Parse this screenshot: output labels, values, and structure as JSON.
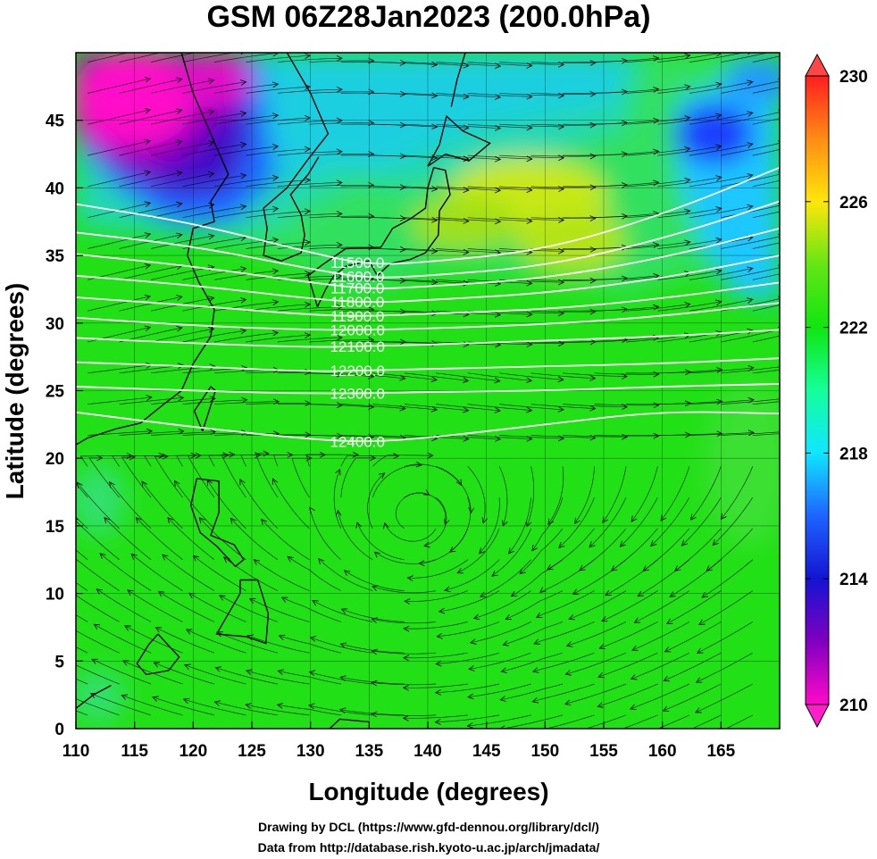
{
  "title": "GSM 06Z28Jan2023 (200.0hPa)",
  "chart_data": {
    "type": "heatmap",
    "xlabel": "Longitude (degrees)",
    "ylabel": "Latitude  (degrees)",
    "xlim": [
      110,
      170
    ],
    "ylim": [
      0,
      50
    ],
    "xticks": [
      110,
      115,
      120,
      125,
      130,
      135,
      140,
      145,
      150,
      155,
      160,
      165
    ],
    "yticks": [
      0,
      5,
      10,
      15,
      20,
      25,
      30,
      35,
      40,
      45
    ],
    "colorbar": {
      "min": 210,
      "max": 230,
      "ticks": [
        210,
        214,
        218,
        222,
        226,
        230
      ],
      "stops": [
        {
          "v": 210,
          "color": "#ff0ac8"
        },
        {
          "v": 212,
          "color": "#8000c0"
        },
        {
          "v": 214,
          "color": "#1414d2"
        },
        {
          "v": 216,
          "color": "#1e64ff"
        },
        {
          "v": 218,
          "color": "#10e6ff"
        },
        {
          "v": 220,
          "color": "#14ff9a"
        },
        {
          "v": 222,
          "color": "#10e610"
        },
        {
          "v": 224,
          "color": "#64e614"
        },
        {
          "v": 226,
          "color": "#ffe60a"
        },
        {
          "v": 228,
          "color": "#ff8c14"
        },
        {
          "v": 230,
          "color": "#ff1e1e"
        }
      ]
    },
    "contours": [
      {
        "label": "11500.0",
        "points": [
          [
            110,
            38.8
          ],
          [
            120,
            37.4
          ],
          [
            130,
            35.2
          ],
          [
            135,
            34.3
          ],
          [
            140,
            34.5
          ],
          [
            150,
            35.4
          ],
          [
            160,
            38.0
          ],
          [
            170,
            41.5
          ]
        ]
      },
      {
        "label": "11600.0",
        "points": [
          [
            110,
            36.7
          ],
          [
            120,
            35.7
          ],
          [
            130,
            34.0
          ],
          [
            135,
            33.3
          ],
          [
            140,
            33.5
          ],
          [
            150,
            34.2
          ],
          [
            160,
            36.2
          ],
          [
            170,
            39.0
          ]
        ]
      },
      {
        "label": "11700.0",
        "points": [
          [
            110,
            35.1
          ],
          [
            120,
            34.2
          ],
          [
            130,
            33.0
          ],
          [
            135,
            32.5
          ],
          [
            140,
            32.7
          ],
          [
            150,
            33.3
          ],
          [
            160,
            34.8
          ],
          [
            170,
            37.0
          ]
        ]
      },
      {
        "label": "11800.0",
        "points": [
          [
            110,
            33.5
          ],
          [
            120,
            32.8
          ],
          [
            130,
            31.8
          ],
          [
            135,
            31.5
          ],
          [
            140,
            31.7
          ],
          [
            150,
            32.2
          ],
          [
            160,
            33.3
          ],
          [
            170,
            35.0
          ]
        ]
      },
      {
        "label": "11900.0",
        "points": [
          [
            110,
            31.9
          ],
          [
            120,
            31.3
          ],
          [
            130,
            30.6
          ],
          [
            135,
            30.5
          ],
          [
            140,
            30.7
          ],
          [
            150,
            31.0
          ],
          [
            160,
            31.8
          ],
          [
            170,
            33.0
          ]
        ]
      },
      {
        "label": "12000.0",
        "points": [
          [
            110,
            30.4
          ],
          [
            120,
            29.8
          ],
          [
            130,
            29.5
          ],
          [
            135,
            29.5
          ],
          [
            140,
            29.6
          ],
          [
            150,
            29.9
          ],
          [
            160,
            30.5
          ],
          [
            170,
            31.5
          ]
        ]
      },
      {
        "label": "12100.0",
        "points": [
          [
            110,
            28.9
          ],
          [
            120,
            28.5
          ],
          [
            130,
            28.2
          ],
          [
            135,
            28.3
          ],
          [
            140,
            28.4
          ],
          [
            150,
            28.7
          ],
          [
            160,
            29.0
          ],
          [
            170,
            29.5
          ]
        ]
      },
      {
        "label": "12200.0",
        "points": [
          [
            110,
            27.1
          ],
          [
            120,
            26.8
          ],
          [
            130,
            26.4
          ],
          [
            135,
            26.5
          ],
          [
            140,
            26.6
          ],
          [
            150,
            26.8
          ],
          [
            160,
            27.0
          ],
          [
            170,
            27.4
          ]
        ]
      },
      {
        "label": "12300.0",
        "points": [
          [
            110,
            25.3
          ],
          [
            120,
            25.0
          ],
          [
            128,
            24.8
          ],
          [
            135,
            24.8
          ],
          [
            140,
            24.9
          ],
          [
            150,
            25.0
          ],
          [
            160,
            25.3
          ],
          [
            170,
            25.5
          ]
        ]
      },
      {
        "label": "12400.0",
        "points": [
          [
            110,
            23.4
          ],
          [
            120,
            22.3
          ],
          [
            130,
            21.4
          ],
          [
            135,
            21.2
          ],
          [
            140,
            21.5
          ],
          [
            150,
            22.5
          ],
          [
            160,
            23.5
          ],
          [
            170,
            23.3
          ]
        ]
      }
    ],
    "credits": [
      "Drawing by DCL (https://www.gfd-dennou.org/library/dcl/)",
      "Data from http://database.rish.kyoto-u.ac.jp/arch/jmadata/"
    ]
  }
}
